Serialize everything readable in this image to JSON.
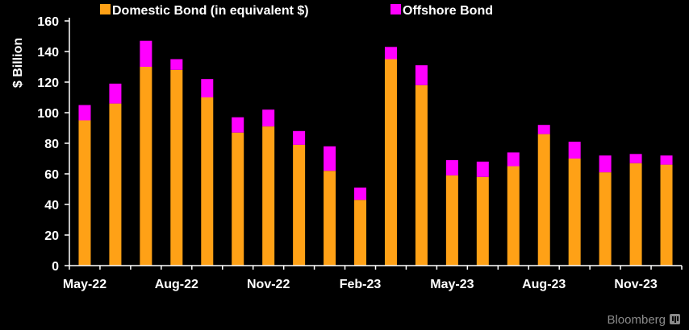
{
  "chart_data": {
    "type": "bar",
    "stacked": true,
    "ylabel": "$ Billion",
    "ylim": [
      0,
      160
    ],
    "yticks": [
      0,
      20,
      40,
      60,
      80,
      100,
      120,
      140,
      160
    ],
    "grid": false,
    "legend_position": "top-left",
    "categories": [
      "May-22",
      "Jun-22",
      "Jul-22",
      "Aug-22",
      "Sep-22",
      "Oct-22",
      "Nov-22",
      "Dec-22",
      "Jan-23",
      "Feb-23",
      "Mar-23",
      "Apr-23",
      "May-23",
      "Jun-23",
      "Jul-23",
      "Aug-23",
      "Sep-23",
      "Oct-23",
      "Nov-23",
      "Dec-23"
    ],
    "xtick_labels": [
      "May-22",
      "Aug-22",
      "Nov-22",
      "Feb-23",
      "May-23",
      "Aug-23",
      "Nov-23"
    ],
    "xtick_categories": [
      "May-22",
      "Aug-22",
      "Nov-22",
      "Feb-23",
      "May-23",
      "Aug-23",
      "Nov-23"
    ],
    "series": [
      {
        "name": "Domestic Bond (in equivalent $)",
        "color": "#FFA116",
        "values": [
          95,
          106,
          130,
          128,
          110,
          87,
          91,
          79,
          62,
          43,
          135,
          118,
          59,
          58,
          65,
          86,
          70,
          61,
          67,
          66
        ]
      },
      {
        "name": "Offshore Bond",
        "color": "#FF00FF",
        "values": [
          10,
          13,
          17,
          7,
          12,
          10,
          11,
          9,
          16,
          8,
          8,
          13,
          10,
          10,
          9,
          6,
          11,
          11,
          6,
          6
        ]
      }
    ]
  },
  "brand": {
    "text": "Bloomberg",
    "icon": "bloomberg-mark-icon"
  }
}
